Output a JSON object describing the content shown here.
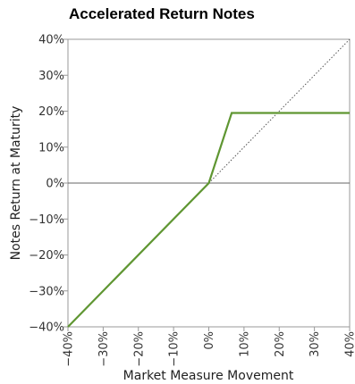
{
  "chart_data": {
    "type": "line",
    "title": "Accelerated Return Notes",
    "xlabel": "Market Measure Movement",
    "ylabel": "Notes Return at Maturity",
    "xlim": [
      -40,
      40
    ],
    "ylim": [
      -40,
      40
    ],
    "x_ticks": [
      "-40%",
      "-30%",
      "-20%",
      "-10%",
      "0%",
      "10%",
      "20%",
      "30%",
      "40%"
    ],
    "y_ticks": [
      "40%",
      "30%",
      "20%",
      "10%",
      "0%",
      "-10%",
      "-20%",
      "-30%",
      "-40%"
    ],
    "grid": false,
    "series": [
      {
        "color": "#5f9632",
        "style": "solid",
        "x": [
          -40,
          0,
          6.5,
          40
        ],
        "y": [
          -40,
          0,
          19.5,
          19.5
        ]
      },
      {
        "color": "#555555",
        "style": "dotted",
        "x": [
          0,
          40
        ],
        "y": [
          0,
          40
        ]
      }
    ]
  }
}
